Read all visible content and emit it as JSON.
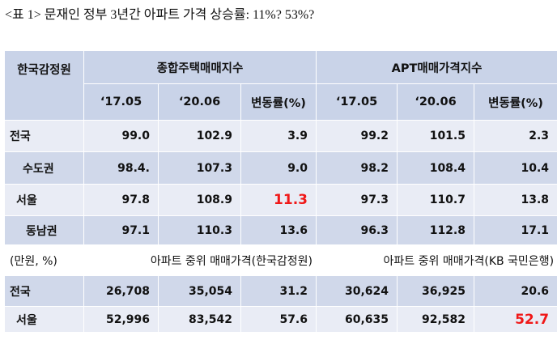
{
  "title": "<표 1> 문재인 정부 3년간 아파트 가격 상승률: 11%? 53%?",
  "table": {
    "corner": "한국감정원",
    "groups": [
      "종합주택매매지수",
      "APT매매가격지수"
    ],
    "subheaders": [
      "‘17.05",
      "‘20.06",
      "변동률(%)",
      "‘17.05",
      "‘20.06",
      "변동률(%)"
    ],
    "rows": [
      [
        "전국",
        "99.0",
        "102.9",
        "3.9",
        "99.2",
        "101.5",
        "2.3"
      ],
      [
        "수도권",
        "98.4.",
        "107.3",
        "9.0",
        "98.2",
        "108.4",
        "10.4"
      ],
      [
        "서울",
        "97.8",
        "108.9",
        "11.3",
        "97.3",
        "110.7",
        "13.8"
      ],
      [
        "동남권",
        "97.1",
        "110.3",
        "13.6",
        "96.3",
        "112.8",
        "17.1"
      ]
    ],
    "section_unit": "(만원, %)",
    "section_groups": [
      "아파트 중위 매매가격(한국감정원)",
      "아파트 중위 매매가격(KB 국민은행)"
    ],
    "rows2": [
      [
        "전국",
        "26,708",
        "35,054",
        "31.2",
        "30,624",
        "36,925",
        "20.6"
      ],
      [
        "서울",
        "52,996",
        "83,542",
        "57.6",
        "60,635",
        "92,582",
        "52.7"
      ]
    ]
  }
}
